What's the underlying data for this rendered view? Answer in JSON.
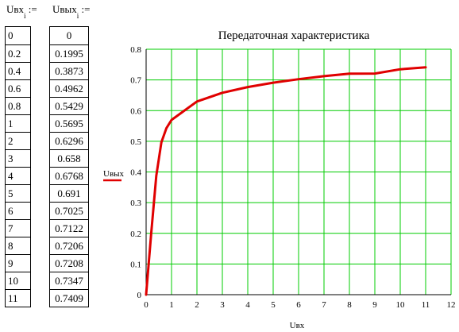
{
  "vars": {
    "uvx": {
      "base": "Uвх",
      "sub": "i",
      "assign": ":="
    },
    "uvyx": {
      "base": "Uвых",
      "sub": "i",
      "assign": ":="
    }
  },
  "uvx_values": [
    "0",
    "0.2",
    "0.4",
    "0.6",
    "0.8",
    "1",
    "2",
    "3",
    "4",
    "5",
    "6",
    "7",
    "8",
    "9",
    "10",
    "11"
  ],
  "uvyx_values": [
    "0",
    "0.1995",
    "0.3873",
    "0.4962",
    "0.5429",
    "0.5695",
    "0.6296",
    "0.658",
    "0.6768",
    "0.691",
    "0.7025",
    "0.7122",
    "0.7206",
    "0.7208",
    "0.7347",
    "0.7409"
  ],
  "chart_data": {
    "type": "line",
    "title": "Передаточная характеристика",
    "xlabel": "Uвх",
    "ylabel": "Uвых",
    "xlim": [
      0,
      12
    ],
    "ylim": [
      0,
      0.8
    ],
    "xticks": [
      "0",
      "1",
      "2",
      "3",
      "4",
      "5",
      "6",
      "7",
      "8",
      "9",
      "10",
      "11",
      "12"
    ],
    "yticks": [
      "0",
      "0.1",
      "0.2",
      "0.3",
      "0.4",
      "0.5",
      "0.6",
      "0.7",
      "0.8"
    ],
    "grid": true,
    "grid_color": "#00cc00",
    "series": [
      {
        "color": "#e00000",
        "x": [
          0,
          0.2,
          0.4,
          0.6,
          0.8,
          1,
          2,
          3,
          4,
          5,
          6,
          7,
          8,
          9,
          10,
          11
        ],
        "y": [
          0,
          0.1995,
          0.3873,
          0.4962,
          0.5429,
          0.5695,
          0.6296,
          0.658,
          0.6768,
          0.691,
          0.7025,
          0.7122,
          0.7206,
          0.7208,
          0.7347,
          0.7409
        ]
      }
    ]
  }
}
